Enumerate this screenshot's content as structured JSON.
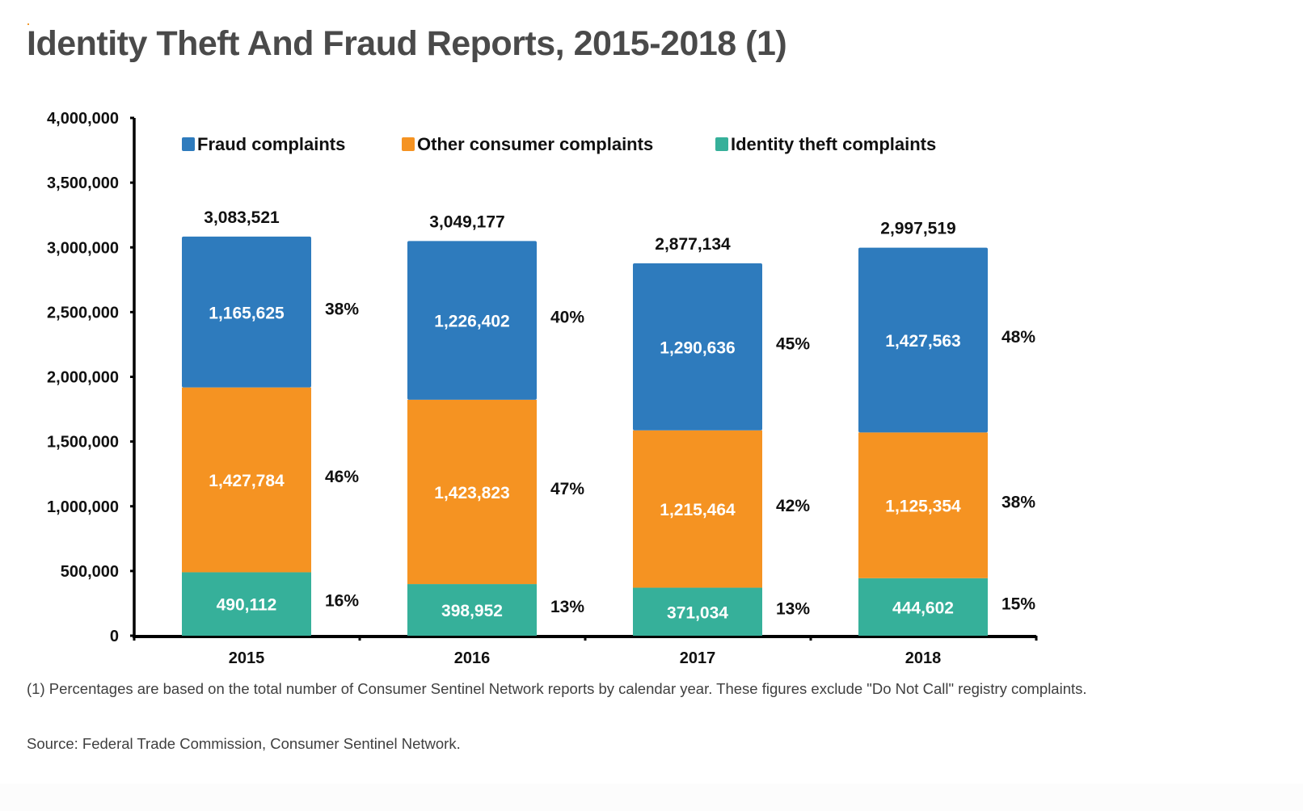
{
  "title": "Identity Theft And Fraud Reports, 2015-2018 (1)",
  "footnote": "(1) Percentages are based on the total number of Consumer Sentinel Network reports by calendar year. These figures exclude \"Do Not Call\" registry complaints.",
  "source": "Source: Federal Trade Commission, Consumer Sentinel Network.",
  "chart_data": {
    "type": "bar",
    "stacked": true,
    "title": "Identity Theft And Fraud Reports, 2015-2018 (1)",
    "xlabel": "",
    "ylabel": "",
    "categories": [
      "2015",
      "2016",
      "2017",
      "2018"
    ],
    "ylim": [
      0,
      4000000
    ],
    "yticks": [
      0,
      500000,
      1000000,
      1500000,
      2000000,
      2500000,
      3000000,
      3500000,
      4000000
    ],
    "ytick_labels": [
      "0",
      "500,000",
      "1,000,000",
      "1,500,000",
      "2,000,000",
      "2,500,000",
      "3,000,000",
      "3,500,000",
      "4,000,000"
    ],
    "grid": false,
    "legend_position": "top",
    "totals": [
      3083521,
      3049177,
      2877134,
      2997519
    ],
    "total_labels": [
      "3,083,521",
      "3,049,177",
      "2,877,134",
      "2,997,519"
    ],
    "series": [
      {
        "name": "Identity theft complaints",
        "color": "#36b09a",
        "values": [
          490112,
          398952,
          371034,
          444602
        ],
        "value_labels": [
          "490,112",
          "398,952",
          "371,034",
          "444,602"
        ],
        "percent_labels": [
          "16%",
          "13%",
          "13%",
          "15%"
        ]
      },
      {
        "name": "Other consumer complaints",
        "color": "#f59322",
        "values": [
          1427784,
          1423823,
          1215464,
          1125354
        ],
        "value_labels": [
          "1,427,784",
          "1,423,823",
          "1,215,464",
          "1,125,354"
        ],
        "percent_labels": [
          "46%",
          "47%",
          "42%",
          "38%"
        ]
      },
      {
        "name": "Fraud complaints",
        "color": "#2e7bbd",
        "values": [
          1165625,
          1226402,
          1290636,
          1427563
        ],
        "value_labels": [
          "1,165,625",
          "1,226,402",
          "1,290,636",
          "1,427,563"
        ],
        "percent_labels": [
          "38%",
          "40%",
          "45%",
          "48%"
        ]
      }
    ],
    "legend": [
      {
        "name": "Fraud complaints",
        "color": "#2e7bbd"
      },
      {
        "name": "Other consumer complaints",
        "color": "#f59322"
      },
      {
        "name": "Identity theft complaints",
        "color": "#36b09a"
      }
    ]
  }
}
